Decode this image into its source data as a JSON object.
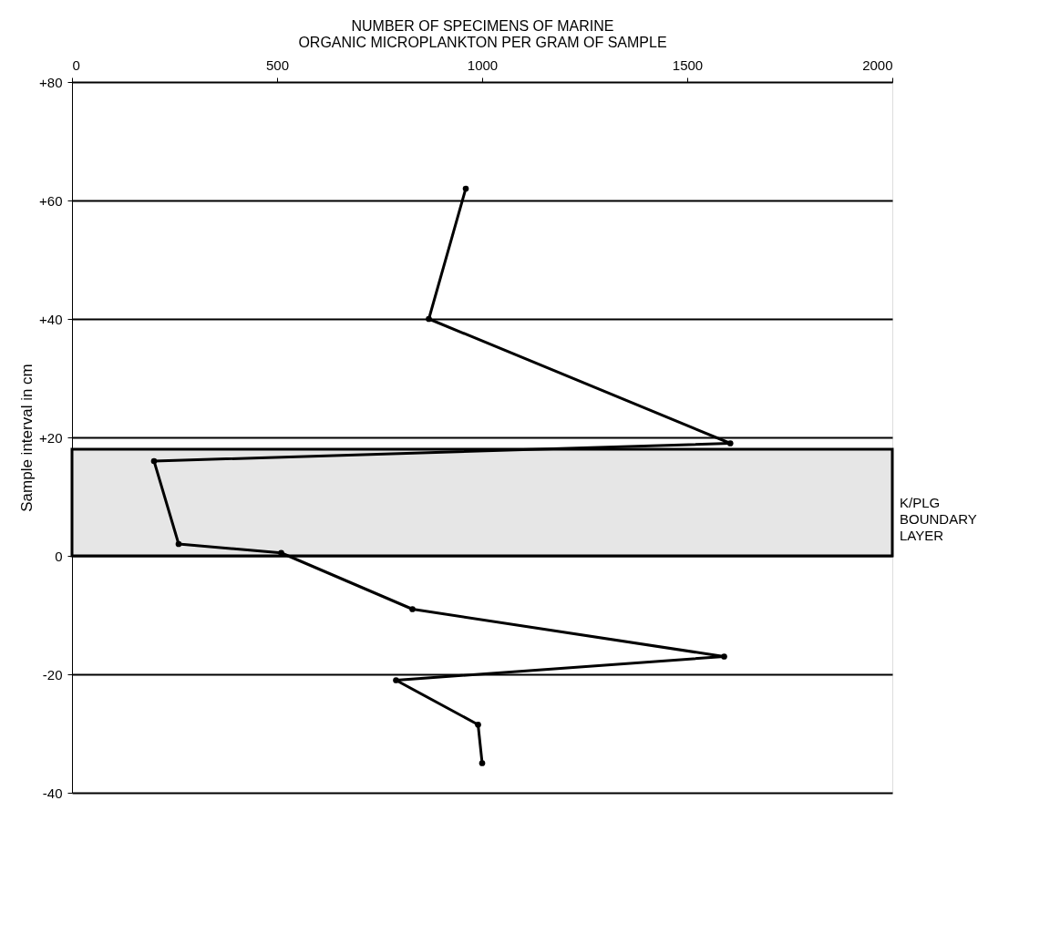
{
  "chart_data": {
    "type": "line",
    "xlabel": "NUMBER OF SPECIMENS OF MARINE\nORGANIC MICROPLANKTON PER GRAM OF SAMPLE",
    "ylabel": "Sample interval in cm",
    "series": [
      {
        "color": "#000000",
        "x": [
          960,
          870,
          1605,
          200,
          260,
          510,
          830,
          1590,
          790,
          990,
          1000
        ],
        "values": [
          62,
          40,
          19,
          16,
          2,
          0.5,
          -9,
          -17,
          -21,
          -28.5,
          -35
        ]
      }
    ],
    "xlim": [
      0,
      2000
    ],
    "xticks": [
      0,
      500,
      1000,
      1500,
      2000
    ],
    "ylim": [
      -40,
      80
    ],
    "yticks": [
      {
        "value": 80,
        "label": "+80"
      },
      {
        "value": 60,
        "label": "+60"
      },
      {
        "value": 40,
        "label": "+40"
      },
      {
        "value": 20,
        "label": "+20"
      },
      0,
      -20,
      -40
    ],
    "bands": [
      {
        "axis": "y",
        "from": 0,
        "to": 18,
        "label": "K/PLG\nBOUNDARY\nLAYER",
        "color": "#e6e6e6"
      }
    ],
    "grid": "y",
    "marker": "circle",
    "line_style": "solid"
  }
}
